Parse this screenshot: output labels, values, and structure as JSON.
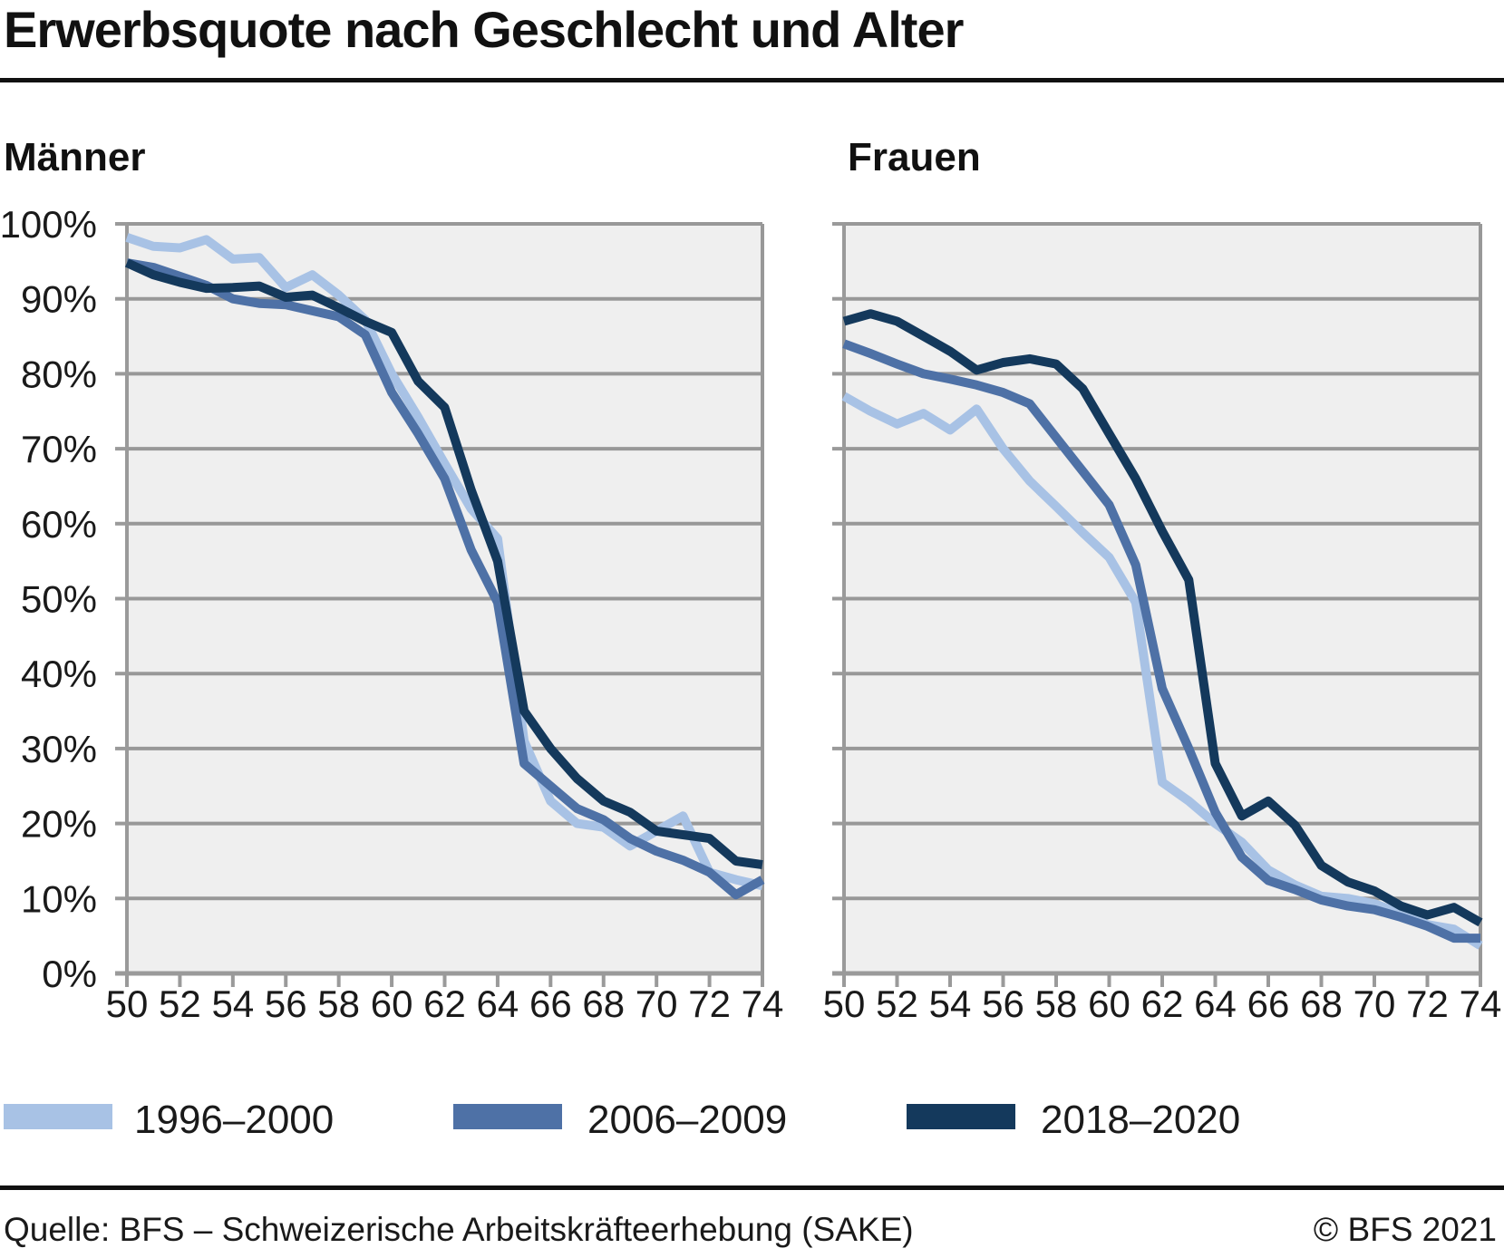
{
  "title": "Erwerbsquote nach Geschlecht und Alter",
  "chart_data": [
    {
      "type": "line",
      "title": "Männer",
      "x": [
        50,
        51,
        52,
        53,
        54,
        55,
        56,
        57,
        58,
        59,
        60,
        61,
        62,
        63,
        64,
        65,
        66,
        67,
        68,
        69,
        70,
        71,
        72,
        73,
        74
      ],
      "x_ticks": [
        "50",
        "52",
        "54",
        "56",
        "58",
        "60",
        "62",
        "64",
        "66",
        "68",
        "70",
        "72",
        "74"
      ],
      "y_ticks": [
        "100%",
        "90%",
        "80%",
        "70%",
        "60%",
        "50%",
        "40%",
        "30%",
        "20%",
        "10%",
        "0%"
      ],
      "ylim": [
        0,
        100
      ],
      "grid": "horizontal",
      "series": [
        {
          "name": "1996–2000",
          "color": "#a8c2e5",
          "values": [
            98.2,
            97,
            96.8,
            97.9,
            95.3,
            95.5,
            91.5,
            93.2,
            90.5,
            87.2,
            80,
            74.2,
            68,
            62,
            58,
            31,
            23,
            20,
            19.5,
            17,
            19,
            21,
            13.5,
            12.5,
            11.7
          ]
        },
        {
          "name": "2006–2009",
          "color": "#4e71a6",
          "values": [
            94.8,
            94.2,
            93,
            91.8,
            90,
            89.4,
            89.2,
            88.4,
            87.6,
            85.2,
            77.5,
            72,
            66,
            56.5,
            49.5,
            28,
            25,
            22,
            20.5,
            18,
            16.3,
            15.1,
            13.5,
            10.5,
            12.5
          ]
        },
        {
          "name": "2018–2020",
          "color": "#14395c",
          "values": [
            94.8,
            93.2,
            92.2,
            91.4,
            91.5,
            91.7,
            90.2,
            90.5,
            88.8,
            87,
            85.5,
            79,
            75.5,
            64.5,
            55,
            35,
            30,
            26,
            23,
            21.5,
            19,
            18.5,
            18,
            15,
            14.5
          ]
        }
      ]
    },
    {
      "type": "line",
      "title": "Frauen",
      "x": [
        50,
        51,
        52,
        53,
        54,
        55,
        56,
        57,
        58,
        59,
        60,
        61,
        62,
        63,
        64,
        65,
        66,
        67,
        68,
        69,
        70,
        71,
        72,
        73,
        74
      ],
      "x_ticks": [
        "50",
        "52",
        "54",
        "56",
        "58",
        "60",
        "62",
        "64",
        "66",
        "68",
        "70",
        "72",
        "74"
      ],
      "y_ticks": [
        "100%",
        "90%",
        "80%",
        "70%",
        "60%",
        "50%",
        "40%",
        "30%",
        "20%",
        "10%",
        "0%"
      ],
      "ylim": [
        0,
        100
      ],
      "grid": "horizontal",
      "series": [
        {
          "name": "1996–2000",
          "color": "#a8c2e5",
          "values": [
            77,
            75,
            73.3,
            74.7,
            72.5,
            75.3,
            70,
            65.7,
            62.3,
            58.8,
            55.5,
            49.5,
            25.5,
            23,
            20,
            17.5,
            13.8,
            11.8,
            10.3,
            10,
            9.3,
            8,
            6.5,
            5.9,
            3.7
          ]
        },
        {
          "name": "2006–2009",
          "color": "#4e71a6",
          "values": [
            84,
            82.7,
            81.3,
            80,
            79.3,
            78.5,
            77.5,
            76,
            71.5,
            67,
            62.5,
            54.5,
            38,
            30,
            21.5,
            15.5,
            12.4,
            11.2,
            9.8,
            9,
            8.5,
            7.5,
            6.3,
            4.7,
            4.7
          ]
        },
        {
          "name": "2018–2020",
          "color": "#14395c",
          "values": [
            87,
            88,
            87,
            85,
            83,
            80.5,
            81.5,
            82,
            81.3,
            78,
            72,
            66,
            59,
            52.5,
            28,
            21,
            23,
            19.8,
            14.4,
            12.2,
            11,
            9,
            7.8,
            8.8,
            6.8
          ]
        }
      ]
    }
  ],
  "legend": [
    {
      "label": "1996–2000",
      "color": "#a8c2e5"
    },
    {
      "label": "2006–2009",
      "color": "#4e71a6"
    },
    {
      "label": "2018–2020",
      "color": "#14395c"
    }
  ],
  "footer": {
    "source": "Quelle: BFS – Schweizerische Arbeitskräfteerhebung (SAKE)",
    "copyright": "© BFS 2021"
  },
  "style": {
    "plot_bg": "#efefef",
    "gridline": "#989898",
    "axis": "#9a9a9a"
  }
}
